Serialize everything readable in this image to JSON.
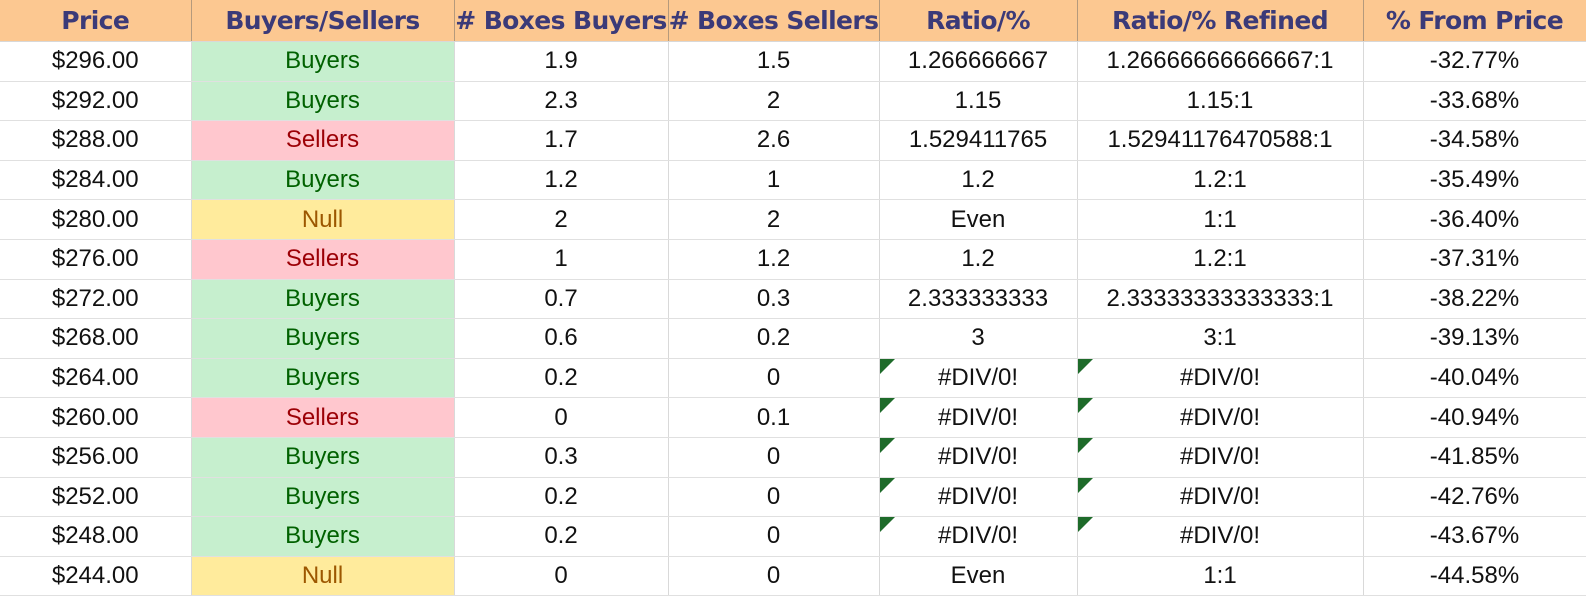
{
  "headers": [
    "Price",
    "Buyers/Sellers",
    "# Boxes Buyers",
    "# Boxes Sellers",
    "Ratio/%",
    "Ratio/% Refined",
    "% From Price"
  ],
  "rows": [
    {
      "price": "$296.00",
      "bs": "Buyers",
      "buyers": "1.9",
      "sellers": "1.5",
      "ratio": "1.266666667",
      "refined": "1.26666666666667:1",
      "pct": "-32.77%",
      "error": false
    },
    {
      "price": "$292.00",
      "bs": "Buyers",
      "buyers": "2.3",
      "sellers": "2",
      "ratio": "1.15",
      "refined": "1.15:1",
      "pct": "-33.68%",
      "error": false
    },
    {
      "price": "$288.00",
      "bs": "Sellers",
      "buyers": "1.7",
      "sellers": "2.6",
      "ratio": "1.529411765",
      "refined": "1.52941176470588:1",
      "pct": "-34.58%",
      "error": false
    },
    {
      "price": "$284.00",
      "bs": "Buyers",
      "buyers": "1.2",
      "sellers": "1",
      "ratio": "1.2",
      "refined": "1.2:1",
      "pct": "-35.49%",
      "error": false
    },
    {
      "price": "$280.00",
      "bs": "Null",
      "buyers": "2",
      "sellers": "2",
      "ratio": "Even",
      "refined": "1:1",
      "pct": "-36.40%",
      "error": false
    },
    {
      "price": "$276.00",
      "bs": "Sellers",
      "buyers": "1",
      "sellers": "1.2",
      "ratio": "1.2",
      "refined": "1.2:1",
      "pct": "-37.31%",
      "error": false
    },
    {
      "price": "$272.00",
      "bs": "Buyers",
      "buyers": "0.7",
      "sellers": "0.3",
      "ratio": "2.333333333",
      "refined": "2.33333333333333:1",
      "pct": "-38.22%",
      "error": false
    },
    {
      "price": "$268.00",
      "bs": "Buyers",
      "buyers": "0.6",
      "sellers": "0.2",
      "ratio": "3",
      "refined": "3:1",
      "pct": "-39.13%",
      "error": false
    },
    {
      "price": "$264.00",
      "bs": "Buyers",
      "buyers": "0.2",
      "sellers": "0",
      "ratio": "#DIV/0!",
      "refined": "#DIV/0!",
      "pct": "-40.04%",
      "error": true
    },
    {
      "price": "$260.00",
      "bs": "Sellers",
      "buyers": "0",
      "sellers": "0.1",
      "ratio": "#DIV/0!",
      "refined": "#DIV/0!",
      "pct": "-40.94%",
      "error": true
    },
    {
      "price": "$256.00",
      "bs": "Buyers",
      "buyers": "0.3",
      "sellers": "0",
      "ratio": "#DIV/0!",
      "refined": "#DIV/0!",
      "pct": "-41.85%",
      "error": true
    },
    {
      "price": "$252.00",
      "bs": "Buyers",
      "buyers": "0.2",
      "sellers": "0",
      "ratio": "#DIV/0!",
      "refined": "#DIV/0!",
      "pct": "-42.76%",
      "error": true
    },
    {
      "price": "$248.00",
      "bs": "Buyers",
      "buyers": "0.2",
      "sellers": "0",
      "ratio": "#DIV/0!",
      "refined": "#DIV/0!",
      "pct": "-43.67%",
      "error": true
    },
    {
      "price": "$244.00",
      "bs": "Null",
      "buyers": "0",
      "sellers": "0",
      "ratio": "Even",
      "refined": "1:1",
      "pct": "-44.58%",
      "error": false
    }
  ],
  "colors": {
    "header_bg": "#fcc891",
    "header_text": "#3b3a78",
    "buyers_bg": "#c6efce",
    "buyers_text": "#006100",
    "sellers_bg": "#ffc7ce",
    "sellers_text": "#9c0006",
    "null_bg": "#ffeb9c",
    "null_text": "#9c5700",
    "error_flag": "#1e6b2a"
  }
}
